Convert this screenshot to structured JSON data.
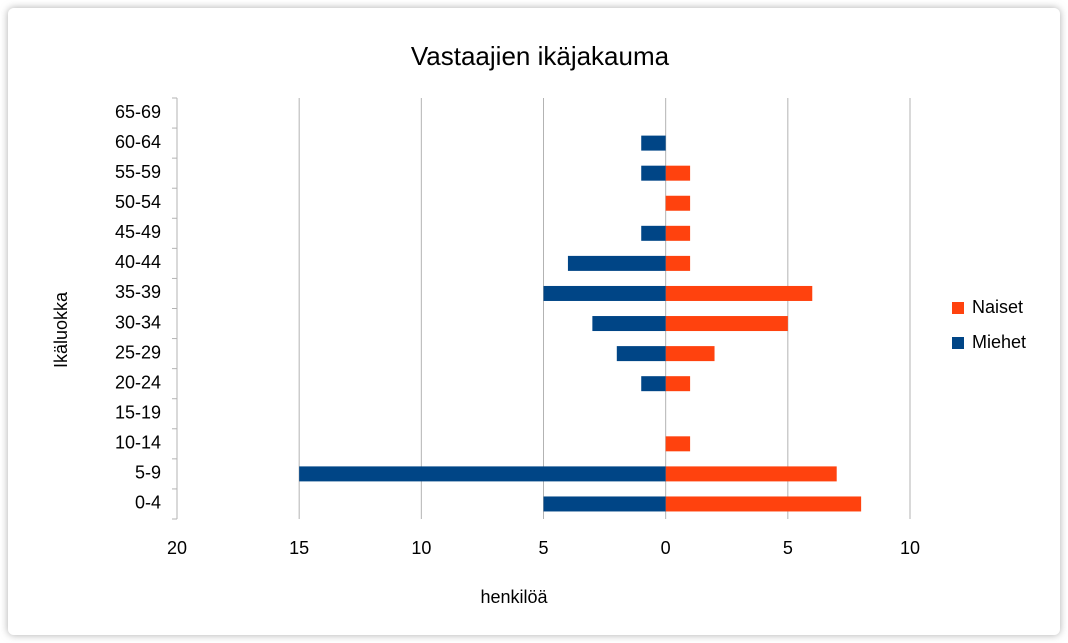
{
  "chart_data": {
    "type": "bar",
    "orientation": "horizontal",
    "stacked": false,
    "title": "Vastaajien ikäjakauma",
    "xlabel": "henkilöä",
    "ylabel": "Ikäluokka",
    "categories": [
      "0-4",
      "5-9",
      "10-14",
      "15-19",
      "20-24",
      "25-29",
      "30-34",
      "35-39",
      "40-44",
      "45-49",
      "50-54",
      "55-59",
      "60-64",
      "65-69"
    ],
    "series": [
      {
        "name": "Naiset",
        "color": "#ff420e",
        "values": [
          8,
          7,
          1,
          0,
          1,
          2,
          5,
          6,
          1,
          1,
          1,
          1,
          0,
          0
        ]
      },
      {
        "name": "Miehet",
        "color": "#004586",
        "values": [
          -5,
          -15,
          0,
          0,
          -1,
          -2,
          -3,
          -5,
          -4,
          -1,
          0,
          -1,
          -1,
          0
        ]
      }
    ],
    "xlim": [
      -20,
      10
    ],
    "xticks": [
      {
        "value": -20,
        "label": "20"
      },
      {
        "value": -15,
        "label": "15"
      },
      {
        "value": -10,
        "label": "10"
      },
      {
        "value": -5,
        "label": "5"
      },
      0,
      5,
      10
    ],
    "grid": true,
    "legend": "right"
  }
}
